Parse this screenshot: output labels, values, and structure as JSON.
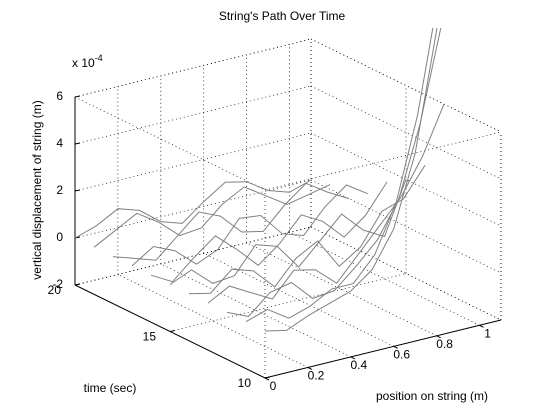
{
  "chart_data": {
    "type": "line3d",
    "title": "String's Path Over Time",
    "xlabel": "position on string (m)",
    "ylabel": "time (sec)",
    "zlabel": "vertical displacement of string (m)",
    "zexponent": {
      "base": "x 10",
      "power": "-4"
    },
    "x": [
      0,
      0.1,
      0.2,
      0.3,
      0.4,
      0.5,
      0.6,
      0.7,
      0.8,
      0.9,
      1.0,
      1.1
    ],
    "xlim": [
      0,
      1.1
    ],
    "ylim": [
      10,
      20
    ],
    "zlim": [
      -2,
      6
    ],
    "xticks": [
      0,
      0.2,
      0.4,
      0.6,
      0.8,
      1
    ],
    "yticks": [
      10,
      15,
      20
    ],
    "zticks": [
      -2,
      0,
      2,
      4,
      6
    ],
    "grid": true,
    "color": "#808080",
    "series": [
      {
        "t": 20,
        "values": [
          0,
          0.3,
          0.8,
          0.5,
          -0.2,
          -0.5,
          0.2,
          0.8,
          0.6,
          0,
          -0.3,
          0
        ]
      },
      {
        "t": 19,
        "values": [
          0,
          0.5,
          1,
          0.4,
          -0.4,
          -0.3,
          0.5,
          1,
          0.4,
          -0.2,
          0,
          0.2
        ]
      },
      {
        "t": 18,
        "values": [
          0,
          -0.3,
          -0.6,
          0.2,
          1,
          0.6,
          -0.3,
          -0.5,
          0.4,
          1.1,
          0.5,
          0
        ]
      },
      {
        "t": 17,
        "values": [
          0,
          0.6,
          0.2,
          -0.6,
          -0.2,
          0.9,
          0.8,
          -0.2,
          -0.5,
          0.5,
          1.2,
          0.6
        ]
      },
      {
        "t": 16,
        "values": [
          0,
          -0.5,
          0.3,
          1,
          0.2,
          -0.7,
          0,
          1,
          0.5,
          -0.4,
          0.3,
          1.5
        ]
      },
      {
        "t": 15,
        "values": [
          0,
          0.4,
          -0.4,
          -0.3,
          0.8,
          0.5,
          -0.6,
          0.3,
          1.2,
          0.3,
          -0.2,
          2
        ]
      },
      {
        "t": 14,
        "values": [
          0,
          -0.2,
          0.6,
          0.3,
          -0.6,
          0.4,
          0.9,
          -0.4,
          0.2,
          1.5,
          1.8,
          3
        ]
      },
      {
        "t": 13,
        "values": [
          0,
          0.5,
          0,
          -0.5,
          0.5,
          0.3,
          -0.5,
          0.5,
          1.5,
          2.5,
          4,
          6
        ]
      },
      {
        "t": 12,
        "values": [
          0,
          -0.4,
          0.4,
          0.6,
          -0.3,
          -0.2,
          0.6,
          1.5,
          3,
          6,
          10,
          14
        ]
      },
      {
        "t": 11,
        "values": [
          0,
          0.3,
          -0.3,
          0,
          0.5,
          0.5,
          1.5,
          3.5,
          7,
          12,
          18,
          25
        ]
      },
      {
        "t": 10,
        "values": [
          0,
          -0.2,
          0.2,
          0.5,
          0.8,
          1.5,
          3,
          6,
          11,
          18,
          26,
          35
        ]
      }
    ]
  }
}
